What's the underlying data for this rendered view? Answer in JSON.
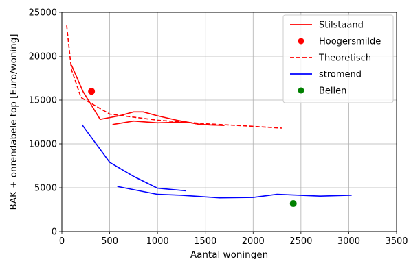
{
  "chart_data": {
    "type": "line",
    "title": "",
    "xlabel": "Aantal woningen",
    "ylabel": "BAK + onrendabele top [Euro/woning]",
    "xlim": [
      0,
      3500
    ],
    "ylim": [
      0,
      25000
    ],
    "xticks": [
      0,
      500,
      1000,
      1500,
      2000,
      2500,
      3000,
      3500
    ],
    "yticks": [
      0,
      5000,
      10000,
      15000,
      20000,
      25000
    ],
    "grid": true,
    "legend_position": "top-right",
    "series": [
      {
        "name": "Stilstaand",
        "style": "solid-line",
        "color": "#ff0000",
        "segments": [
          [
            [
              100,
              19000
            ],
            [
              220,
              16000
            ],
            [
              400,
              12800
            ],
            [
              600,
              13200
            ],
            [
              750,
              13650
            ],
            [
              850,
              13650
            ],
            [
              1000,
              13200
            ],
            [
              1200,
              12700
            ],
            [
              1450,
              12200
            ],
            [
              1700,
              12100
            ]
          ],
          [
            [
              530,
              12200
            ],
            [
              750,
              12600
            ],
            [
              1000,
              12400
            ],
            [
              1300,
              12500
            ],
            [
              1450,
              12200
            ],
            [
              1700,
              12100
            ]
          ]
        ]
      },
      {
        "name": "Hoogersmilde",
        "style": "marker",
        "color": "#ff0000",
        "points": [
          [
            310,
            16000
          ]
        ]
      },
      {
        "name": "Theoretisch",
        "style": "dashed-line",
        "color": "#ff0000",
        "segments": [
          [
            [
              50,
              23500
            ],
            [
              100,
              18500
            ],
            [
              200,
              15300
            ],
            [
              500,
              13400
            ],
            [
              1000,
              12700
            ],
            [
              1500,
              12300
            ],
            [
              2000,
              12000
            ],
            [
              2300,
              11800
            ]
          ]
        ]
      },
      {
        "name": "stromend",
        "style": "solid-line",
        "color": "#0000ff",
        "segments": [
          [
            [
              210,
              12200
            ],
            [
              500,
              7900
            ],
            [
              750,
              6300
            ],
            [
              1000,
              4950
            ],
            [
              1300,
              4650
            ]
          ],
          [
            [
              580,
              5150
            ],
            [
              1000,
              4250
            ],
            [
              1250,
              4150
            ],
            [
              1650,
              3850
            ],
            [
              2000,
              3900
            ],
            [
              2250,
              4250
            ],
            [
              2700,
              4050
            ],
            [
              3030,
              4150
            ]
          ]
        ]
      },
      {
        "name": "Beilen",
        "style": "marker",
        "color": "#008000",
        "points": [
          [
            2420,
            3200
          ]
        ]
      }
    ]
  }
}
